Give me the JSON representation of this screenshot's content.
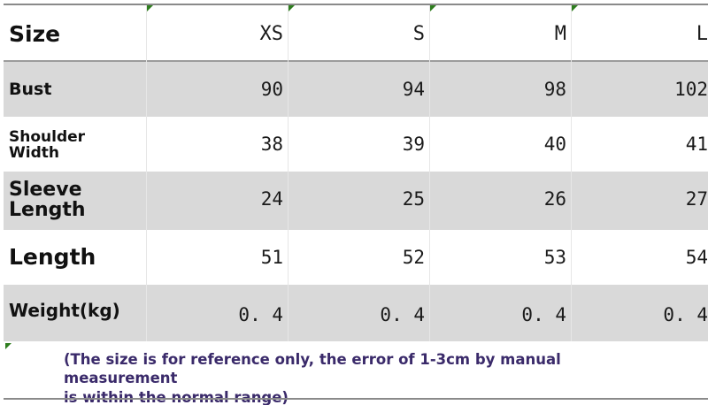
{
  "table": {
    "header": {
      "label": "Size",
      "sizes": [
        "XS",
        "S",
        "M",
        "L"
      ]
    },
    "rows": [
      {
        "label_lines": [
          "Bust"
        ],
        "values": [
          "90",
          "94",
          "98",
          "102"
        ]
      },
      {
        "label_lines": [
          "Shoulder",
          "Width"
        ],
        "values": [
          "38",
          "39",
          "40",
          "41"
        ]
      },
      {
        "label_lines": [
          "Sleeve",
          "Length"
        ],
        "values": [
          "24",
          "25",
          "26",
          "27"
        ]
      },
      {
        "label_lines": [
          "Length"
        ],
        "values": [
          "51",
          "52",
          "53",
          "54"
        ]
      },
      {
        "label_lines": [
          "Weight(kg)"
        ],
        "values": [
          "0. 4",
          "0. 4",
          "0. 4",
          "0. 4"
        ]
      }
    ]
  },
  "note": {
    "line1": "(The size is for reference only, the error of 1-3cm by manual measurement",
    "line2": "is within the normal range)"
  },
  "colors": {
    "shaded_row": "#d9d9d9",
    "note_text": "#3a2a6a",
    "marker": "#2e7d1e"
  }
}
